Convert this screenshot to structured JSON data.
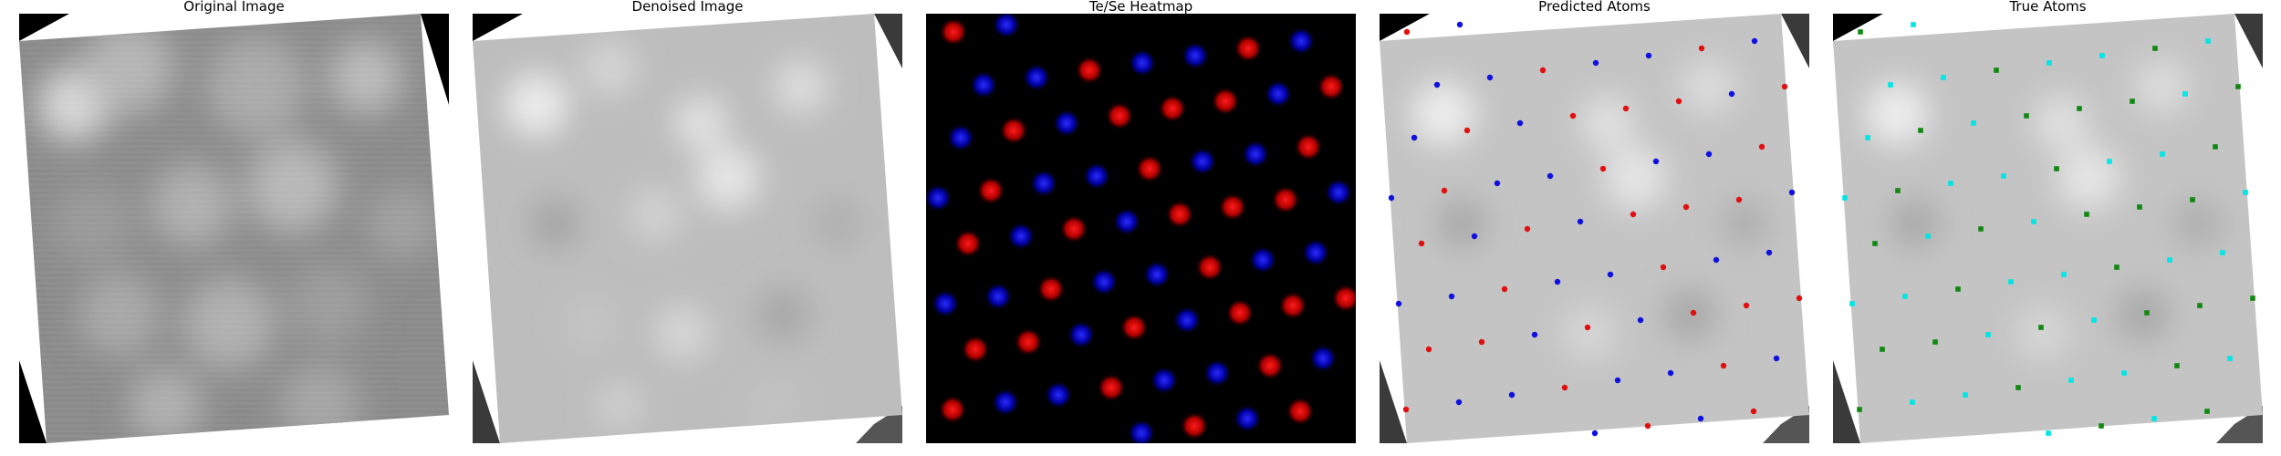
{
  "panels": [
    {
      "id": "original",
      "title": "Original Image"
    },
    {
      "id": "denoised",
      "title": "Denoised Image"
    },
    {
      "id": "heatmap",
      "title": "Te/Se Heatmap"
    },
    {
      "id": "predicted",
      "title": "Predicted Atoms"
    },
    {
      "id": "true",
      "title": "True Atoms"
    }
  ],
  "colors": {
    "te": "#e01010",
    "se": "#1010e0",
    "true_te": "#00e5e5",
    "true_se": "#118811",
    "background": "#000000",
    "corner_gray": "#555555"
  },
  "legend_semantics": {
    "red": "Te",
    "blue": "Se"
  }
}
